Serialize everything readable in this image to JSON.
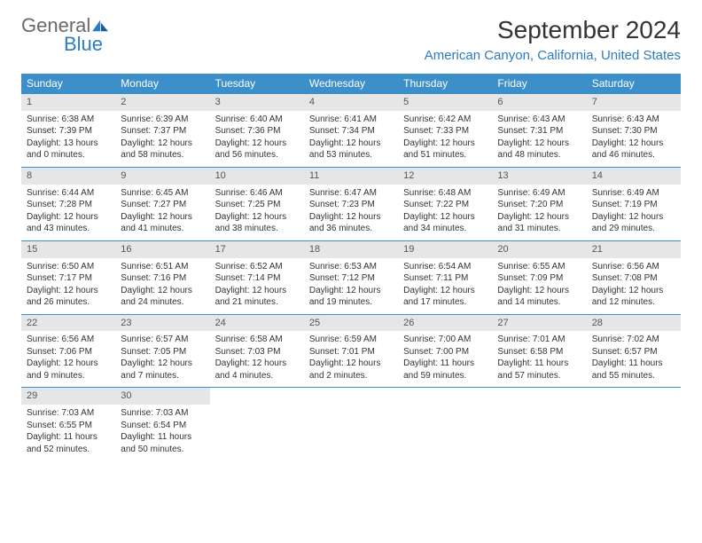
{
  "logo": {
    "general": "General",
    "blue": "Blue"
  },
  "title": "September 2024",
  "location": "American Canyon, California, United States",
  "colors": {
    "header_bg": "#3d8fc9",
    "header_text": "#ffffff",
    "daynum_bg": "#e6e6e6",
    "daynum_text": "#555555",
    "border": "#3d8fc9",
    "body_text": "#333333",
    "logo_gray": "#6a6a6a",
    "logo_blue": "#2b7cc2",
    "location_color": "#2b7cc2",
    "page_bg": "#ffffff"
  },
  "weekdays": [
    "Sunday",
    "Monday",
    "Tuesday",
    "Wednesday",
    "Thursday",
    "Friday",
    "Saturday"
  ],
  "weeks": [
    [
      {
        "n": "1",
        "sunrise": "Sunrise: 6:38 AM",
        "sunset": "Sunset: 7:39 PM",
        "daylight": "Daylight: 13 hours and 0 minutes."
      },
      {
        "n": "2",
        "sunrise": "Sunrise: 6:39 AM",
        "sunset": "Sunset: 7:37 PM",
        "daylight": "Daylight: 12 hours and 58 minutes."
      },
      {
        "n": "3",
        "sunrise": "Sunrise: 6:40 AM",
        "sunset": "Sunset: 7:36 PM",
        "daylight": "Daylight: 12 hours and 56 minutes."
      },
      {
        "n": "4",
        "sunrise": "Sunrise: 6:41 AM",
        "sunset": "Sunset: 7:34 PM",
        "daylight": "Daylight: 12 hours and 53 minutes."
      },
      {
        "n": "5",
        "sunrise": "Sunrise: 6:42 AM",
        "sunset": "Sunset: 7:33 PM",
        "daylight": "Daylight: 12 hours and 51 minutes."
      },
      {
        "n": "6",
        "sunrise": "Sunrise: 6:43 AM",
        "sunset": "Sunset: 7:31 PM",
        "daylight": "Daylight: 12 hours and 48 minutes."
      },
      {
        "n": "7",
        "sunrise": "Sunrise: 6:43 AM",
        "sunset": "Sunset: 7:30 PM",
        "daylight": "Daylight: 12 hours and 46 minutes."
      }
    ],
    [
      {
        "n": "8",
        "sunrise": "Sunrise: 6:44 AM",
        "sunset": "Sunset: 7:28 PM",
        "daylight": "Daylight: 12 hours and 43 minutes."
      },
      {
        "n": "9",
        "sunrise": "Sunrise: 6:45 AM",
        "sunset": "Sunset: 7:27 PM",
        "daylight": "Daylight: 12 hours and 41 minutes."
      },
      {
        "n": "10",
        "sunrise": "Sunrise: 6:46 AM",
        "sunset": "Sunset: 7:25 PM",
        "daylight": "Daylight: 12 hours and 38 minutes."
      },
      {
        "n": "11",
        "sunrise": "Sunrise: 6:47 AM",
        "sunset": "Sunset: 7:23 PM",
        "daylight": "Daylight: 12 hours and 36 minutes."
      },
      {
        "n": "12",
        "sunrise": "Sunrise: 6:48 AM",
        "sunset": "Sunset: 7:22 PM",
        "daylight": "Daylight: 12 hours and 34 minutes."
      },
      {
        "n": "13",
        "sunrise": "Sunrise: 6:49 AM",
        "sunset": "Sunset: 7:20 PM",
        "daylight": "Daylight: 12 hours and 31 minutes."
      },
      {
        "n": "14",
        "sunrise": "Sunrise: 6:49 AM",
        "sunset": "Sunset: 7:19 PM",
        "daylight": "Daylight: 12 hours and 29 minutes."
      }
    ],
    [
      {
        "n": "15",
        "sunrise": "Sunrise: 6:50 AM",
        "sunset": "Sunset: 7:17 PM",
        "daylight": "Daylight: 12 hours and 26 minutes."
      },
      {
        "n": "16",
        "sunrise": "Sunrise: 6:51 AM",
        "sunset": "Sunset: 7:16 PM",
        "daylight": "Daylight: 12 hours and 24 minutes."
      },
      {
        "n": "17",
        "sunrise": "Sunrise: 6:52 AM",
        "sunset": "Sunset: 7:14 PM",
        "daylight": "Daylight: 12 hours and 21 minutes."
      },
      {
        "n": "18",
        "sunrise": "Sunrise: 6:53 AM",
        "sunset": "Sunset: 7:12 PM",
        "daylight": "Daylight: 12 hours and 19 minutes."
      },
      {
        "n": "19",
        "sunrise": "Sunrise: 6:54 AM",
        "sunset": "Sunset: 7:11 PM",
        "daylight": "Daylight: 12 hours and 17 minutes."
      },
      {
        "n": "20",
        "sunrise": "Sunrise: 6:55 AM",
        "sunset": "Sunset: 7:09 PM",
        "daylight": "Daylight: 12 hours and 14 minutes."
      },
      {
        "n": "21",
        "sunrise": "Sunrise: 6:56 AM",
        "sunset": "Sunset: 7:08 PM",
        "daylight": "Daylight: 12 hours and 12 minutes."
      }
    ],
    [
      {
        "n": "22",
        "sunrise": "Sunrise: 6:56 AM",
        "sunset": "Sunset: 7:06 PM",
        "daylight": "Daylight: 12 hours and 9 minutes."
      },
      {
        "n": "23",
        "sunrise": "Sunrise: 6:57 AM",
        "sunset": "Sunset: 7:05 PM",
        "daylight": "Daylight: 12 hours and 7 minutes."
      },
      {
        "n": "24",
        "sunrise": "Sunrise: 6:58 AM",
        "sunset": "Sunset: 7:03 PM",
        "daylight": "Daylight: 12 hours and 4 minutes."
      },
      {
        "n": "25",
        "sunrise": "Sunrise: 6:59 AM",
        "sunset": "Sunset: 7:01 PM",
        "daylight": "Daylight: 12 hours and 2 minutes."
      },
      {
        "n": "26",
        "sunrise": "Sunrise: 7:00 AM",
        "sunset": "Sunset: 7:00 PM",
        "daylight": "Daylight: 11 hours and 59 minutes."
      },
      {
        "n": "27",
        "sunrise": "Sunrise: 7:01 AM",
        "sunset": "Sunset: 6:58 PM",
        "daylight": "Daylight: 11 hours and 57 minutes."
      },
      {
        "n": "28",
        "sunrise": "Sunrise: 7:02 AM",
        "sunset": "Sunset: 6:57 PM",
        "daylight": "Daylight: 11 hours and 55 minutes."
      }
    ],
    [
      {
        "n": "29",
        "sunrise": "Sunrise: 7:03 AM",
        "sunset": "Sunset: 6:55 PM",
        "daylight": "Daylight: 11 hours and 52 minutes."
      },
      {
        "n": "30",
        "sunrise": "Sunrise: 7:03 AM",
        "sunset": "Sunset: 6:54 PM",
        "daylight": "Daylight: 11 hours and 50 minutes."
      },
      null,
      null,
      null,
      null,
      null
    ]
  ]
}
